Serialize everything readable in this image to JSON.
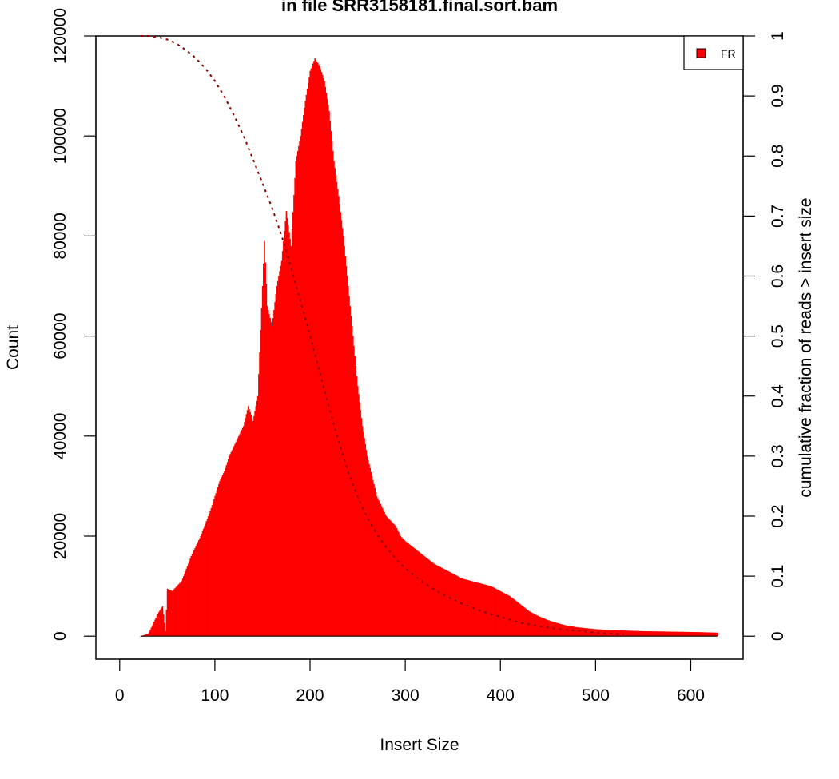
{
  "chart_data": {
    "type": "bar",
    "title": "in file SRR3158181.final.sort.bam",
    "xlabel": "Insert Size",
    "ylabel": "Count",
    "y2label": "cumulative fraction of reads > insert size",
    "xlim": [
      -25,
      655
    ],
    "ylim": [
      -4600,
      120000
    ],
    "y2lim": [
      -0.0383,
      1.0
    ],
    "xticks": [
      "0",
      "100",
      "200",
      "300",
      "400",
      "500",
      "600"
    ],
    "yticks": [
      "0",
      "20000",
      "40000",
      "60000",
      "80000",
      "100000",
      "120000"
    ],
    "y2ticks": [
      "0",
      "0.1",
      "0.2",
      "0.3",
      "0.4",
      "0.5",
      "0.6",
      "0.7",
      "0.8",
      "0.9",
      "1"
    ],
    "legend": {
      "position": "top-right",
      "entries": [
        "FR"
      ]
    },
    "bar_color": "#ff0000",
    "cumulative_color": "#8b0000",
    "histogram_series": {
      "name": "FR",
      "x": [
        22,
        30,
        35,
        40,
        45,
        48,
        50,
        55,
        60,
        65,
        70,
        75,
        80,
        85,
        90,
        95,
        100,
        105,
        110,
        115,
        120,
        125,
        130,
        135,
        140,
        145,
        150,
        152,
        155,
        160,
        165,
        170,
        175,
        180,
        185,
        190,
        195,
        200,
        205,
        210,
        215,
        220,
        225,
        230,
        235,
        240,
        245,
        250,
        255,
        260,
        265,
        270,
        275,
        280,
        285,
        290,
        295,
        300,
        310,
        320,
        330,
        340,
        350,
        360,
        370,
        380,
        390,
        400,
        410,
        420,
        430,
        440,
        450,
        460,
        470,
        480,
        500,
        520,
        550,
        580,
        610,
        628
      ],
      "values": [
        0,
        500,
        2500,
        4500,
        6000,
        1000,
        9500,
        9000,
        10000,
        11000,
        13500,
        16000,
        18000,
        20000,
        22500,
        25000,
        28000,
        31000,
        33000,
        36000,
        38000,
        40000,
        42000,
        46000,
        43000,
        48000,
        70000,
        79000,
        66000,
        62000,
        70000,
        75000,
        85000,
        78000,
        95000,
        100000,
        107000,
        113000,
        115500,
        114000,
        111000,
        105000,
        95000,
        88000,
        80000,
        70000,
        60000,
        50000,
        42000,
        36000,
        32000,
        28000,
        26000,
        24000,
        23000,
        22000,
        20000,
        19000,
        17500,
        16000,
        14500,
        13500,
        12500,
        11500,
        11000,
        10500,
        10000,
        9000,
        8000,
        6500,
        5000,
        4000,
        3200,
        2600,
        2100,
        1800,
        1400,
        1200,
        1000,
        900,
        800,
        700
      ]
    },
    "cumulative_series": {
      "x": [
        22,
        30,
        40,
        50,
        60,
        70,
        80,
        90,
        100,
        110,
        120,
        130,
        140,
        150,
        160,
        170,
        180,
        190,
        200,
        210,
        220,
        230,
        240,
        250,
        260,
        270,
        280,
        290,
        300,
        320,
        340,
        360,
        380,
        400,
        420,
        440,
        460,
        480,
        500,
        530
      ],
      "values": [
        1.0,
        1.0,
        0.998,
        0.994,
        0.987,
        0.976,
        0.963,
        0.946,
        0.925,
        0.899,
        0.868,
        0.834,
        0.795,
        0.755,
        0.714,
        0.668,
        0.615,
        0.558,
        0.501,
        0.441,
        0.381,
        0.325,
        0.274,
        0.232,
        0.198,
        0.171,
        0.148,
        0.129,
        0.113,
        0.088,
        0.069,
        0.054,
        0.042,
        0.032,
        0.023,
        0.017,
        0.012,
        0.009,
        0.006,
        0.003
      ]
    }
  }
}
